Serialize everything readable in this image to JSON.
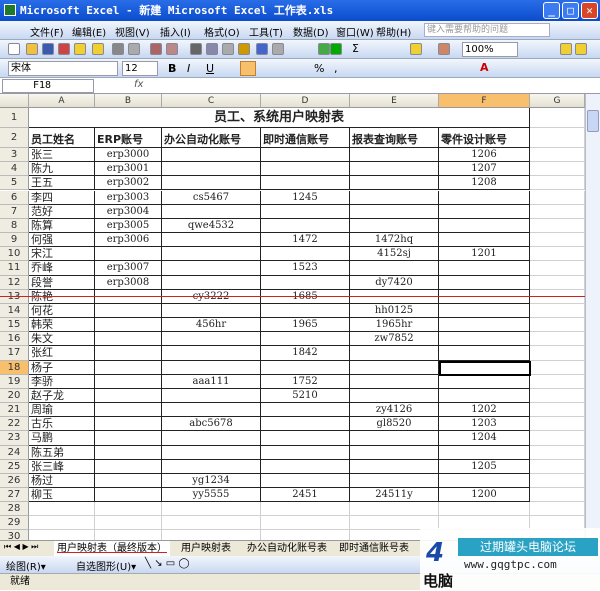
{
  "window": {
    "title": "Microsoft Excel - 新建 Microsoft Excel 工作表.xls"
  },
  "menu": {
    "items": [
      "文件(F)",
      "编辑(E)",
      "视图(V)",
      "插入(I)",
      "格式(O)",
      "工具(T)",
      "数据(D)",
      "窗口(W)",
      "帮助(H)"
    ],
    "help_placeholder": "键入需要帮助的问题"
  },
  "toolbar": {
    "zoom": "100%",
    "sigma": "Σ"
  },
  "format": {
    "font": "宋体",
    "size": "12",
    "bold": "B",
    "italic": "I",
    "underline": "U",
    "percent": "%",
    "comma": ","
  },
  "formula": {
    "namebox": "F18",
    "fx": "fx",
    "value": ""
  },
  "columns": [
    "A",
    "B",
    "C",
    "D",
    "E",
    "F",
    "G"
  ],
  "selected_column": "F",
  "selected_row": 18,
  "sheet": {
    "title": "员工、系统用户映射表",
    "headers": [
      "员工姓名",
      "ERP账号",
      "办公自动化账号",
      "即时通信账号",
      "报表查询账号",
      "零件设计账号"
    ],
    "rows": [
      [
        "张三",
        "erp3000",
        "",
        "",
        "",
        "1206"
      ],
      [
        "陈九",
        "erp3001",
        "",
        "",
        "",
        "1207"
      ],
      [
        "王五",
        "erp3002",
        "",
        "",
        "",
        "1208"
      ],
      [
        "李四",
        "erp3003",
        "cs5467",
        "1245",
        "",
        ""
      ],
      [
        "范好",
        "erp3004",
        "",
        "",
        "",
        ""
      ],
      [
        "陈算",
        "erp3005",
        "qwe4532",
        "",
        "",
        ""
      ],
      [
        "何强",
        "erp3006",
        "",
        "1472",
        "1472hq",
        ""
      ],
      [
        "宋江",
        "",
        "",
        "",
        "4152sj",
        "1201"
      ],
      [
        "乔峰",
        "erp3007",
        "",
        "1523",
        "",
        ""
      ],
      [
        "段誉",
        "erp3008",
        "",
        "",
        "dy7420",
        ""
      ],
      [
        "陈艳",
        "",
        "cy3222",
        "1685",
        "",
        ""
      ],
      [
        "何花",
        "",
        "",
        "",
        "hh0125",
        ""
      ],
      [
        "韩荣",
        "",
        "456hr",
        "1965",
        "1965hr",
        ""
      ],
      [
        "朱文",
        "",
        "",
        "",
        "zw7852",
        ""
      ],
      [
        "张红",
        "",
        "",
        "1842",
        "",
        ""
      ],
      [
        "杨子",
        "",
        "",
        "",
        "",
        ""
      ],
      [
        "李骄",
        "",
        "aaa111",
        "1752",
        "",
        ""
      ],
      [
        "赵子龙",
        "",
        "",
        "5210",
        "",
        ""
      ],
      [
        "周瑜",
        "",
        "",
        "",
        "zy4126",
        "1202"
      ],
      [
        "古乐",
        "",
        "abc5678",
        "",
        "gl8520",
        "1203"
      ],
      [
        "马鹏",
        "",
        "",
        "",
        "",
        "1204"
      ],
      [
        "陈五弟",
        "",
        "",
        "",
        "",
        ""
      ],
      [
        "张三峰",
        "",
        "",
        "",
        "",
        "1205"
      ],
      [
        "杨过",
        "",
        "yg1234",
        "",
        "",
        ""
      ],
      [
        "柳玉",
        "",
        "yy5555",
        "2451",
        "24511y",
        "1200"
      ]
    ],
    "extra_rows": [
      28,
      29,
      30
    ]
  },
  "tabs": [
    "用户映射表（最终版本）",
    "用户映射表",
    "办公自动化账号表",
    "即时通信账号表"
  ],
  "drawbar": {
    "draw": "绘图(R)▾",
    "autoshape": "自选图形(U)▾"
  },
  "status": {
    "text": "就绪"
  },
  "watermark": {
    "forum": "过期罐头电脑论坛",
    "url": "www.gqgtpc.com",
    "cn": "电脑"
  },
  "colors": {
    "accent": "#f8c06c",
    "titlebar": "#0a4ccc",
    "redline": "#d02020"
  }
}
